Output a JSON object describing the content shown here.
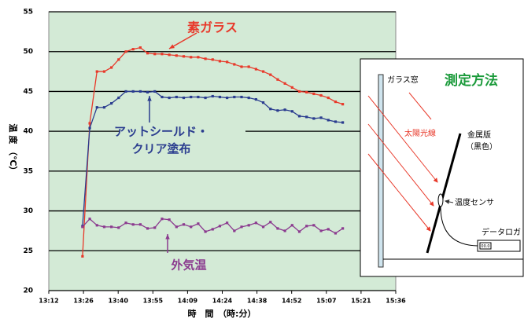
{
  "chart_data": {
    "type": "line",
    "x": [
      806,
      809,
      812,
      815,
      818,
      821,
      824,
      827,
      830,
      833,
      836,
      839,
      842,
      845,
      848,
      851,
      854,
      857,
      860,
      863,
      866,
      869,
      872,
      875,
      878,
      881,
      884,
      887,
      890,
      893,
      896,
      899,
      902,
      905,
      908,
      911,
      914
    ],
    "series": [
      {
        "color": "#e8392a",
        "values": [
          24.3,
          41,
          47.5,
          47.5,
          48,
          49,
          50,
          50.3,
          50.5,
          49.8,
          49.7,
          49.7,
          49.6,
          49.5,
          49.4,
          49.3,
          49.3,
          49.1,
          49.0,
          48.8,
          48.7,
          48.4,
          48.1,
          48.1,
          47.8,
          47.5,
          47.1,
          46.5,
          46.0,
          45.5,
          45.0,
          44.9,
          44.7,
          44.5,
          44.2,
          43.7,
          43.4
        ]
      },
      {
        "color": "#2a3c8f",
        "values": [
          28.1,
          40.4,
          43,
          43,
          43.5,
          44.2,
          45,
          45,
          45,
          44.9,
          45,
          44.3,
          44.2,
          44.3,
          44.2,
          44.3,
          44.3,
          44.2,
          44.4,
          44.3,
          44.2,
          44.3,
          44.3,
          44.2,
          44.0,
          43.6,
          42.8,
          42.6,
          42.7,
          42.5,
          41.9,
          41.8,
          41.6,
          41.7,
          41.4,
          41.2,
          41.1
        ]
      },
      {
        "color": "#8b3a8f",
        "values": [
          28,
          29,
          28.2,
          28,
          28,
          27.9,
          28.5,
          28.3,
          28.3,
          27.8,
          27.9,
          29,
          28.9,
          28,
          28.3,
          28,
          28.4,
          27.4,
          27.7,
          28.1,
          28.5,
          27.5,
          28,
          28.2,
          28.5,
          28,
          28.6,
          27.8,
          27.5,
          28.2,
          27.4,
          28.1,
          28.2,
          27.5,
          27.7,
          27.2,
          27.8
        ]
      }
    ],
    "xlim": [
      792,
      936
    ],
    "xticks": [
      {
        "value": 792,
        "label": "13:12"
      },
      {
        "value": 806.4,
        "label": "13:26"
      },
      {
        "value": 820.8,
        "label": "13:40"
      },
      {
        "value": 835.2,
        "label": "13:55"
      },
      {
        "value": 849.6,
        "label": "14:09"
      },
      {
        "value": 864,
        "label": "14:24"
      },
      {
        "value": 878.4,
        "label": "14:38"
      },
      {
        "value": 892.8,
        "label": "14:52"
      },
      {
        "value": 907.2,
        "label": "15:07"
      },
      {
        "value": 921.6,
        "label": "15:21"
      },
      {
        "value": 936,
        "label": "15:36"
      }
    ],
    "ylim": [
      20,
      55
    ],
    "yticks": [
      20,
      25,
      30,
      35,
      40,
      45,
      50,
      55
    ],
    "grid": true,
    "ylabel": "温 度 （℃）",
    "xlabel": "時　間　（時:分）",
    "annotations": [
      {
        "text": "素ガラス",
        "color": "#e8392a"
      },
      {
        "text": "アットシールド・",
        "color": "#2a3c8f"
      },
      {
        "text": "クリア塗布",
        "color": "#2a3c8f"
      },
      {
        "text": "外気温",
        "color": "#8b3a8f"
      }
    ]
  },
  "diagram": {
    "title": "測定方法",
    "window": "ガラス窓",
    "sunlight": "太陽光線",
    "plate": "金属版",
    "plate_color": "（黒色）",
    "sensor": "温度センサ",
    "logger": "データロガ",
    "display": "00.0"
  }
}
